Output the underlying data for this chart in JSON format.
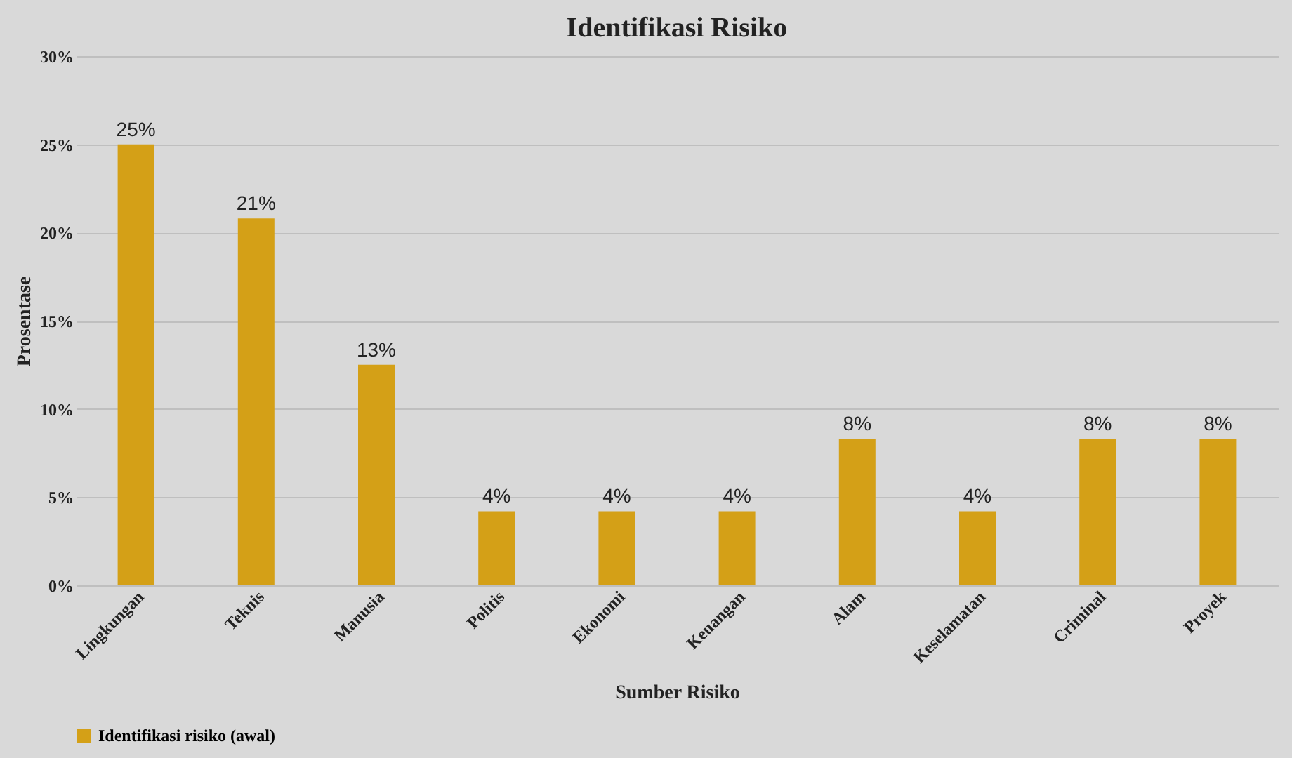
{
  "chart_data": {
    "type": "bar",
    "title": "Identifikasi Risiko",
    "xlabel": "Sumber Risiko",
    "ylabel": "Prosentase",
    "categories": [
      "Lingkungan",
      "Teknis",
      "Manusia",
      "Politis",
      "Ekonomi",
      "Keuangan",
      "Alam",
      "Keselamatan",
      "Criminal",
      "Proyek"
    ],
    "series": [
      {
        "name": "Identifikasi risiko (awal)",
        "color": "#d4a017",
        "values": [
          25,
          20.8,
          12.5,
          4.2,
          4.2,
          4.2,
          8.3,
          4.2,
          8.3,
          8.3
        ],
        "value_labels": [
          "25%",
          "21%",
          "13%",
          "4%",
          "4%",
          "4%",
          "8%",
          "4%",
          "8%",
          "8%"
        ]
      }
    ],
    "ylim": [
      0,
      30
    ],
    "yticks": [
      {
        "value": 0,
        "label": "0%"
      },
      {
        "value": 5,
        "label": "5%"
      },
      {
        "value": 10,
        "label": "10%"
      },
      {
        "value": 15,
        "label": "15%"
      },
      {
        "value": 20,
        "label": "20%"
      },
      {
        "value": 25,
        "label": "25%"
      },
      {
        "value": 30,
        "label": "30%"
      }
    ],
    "grid": "y",
    "legend": "bottom"
  }
}
